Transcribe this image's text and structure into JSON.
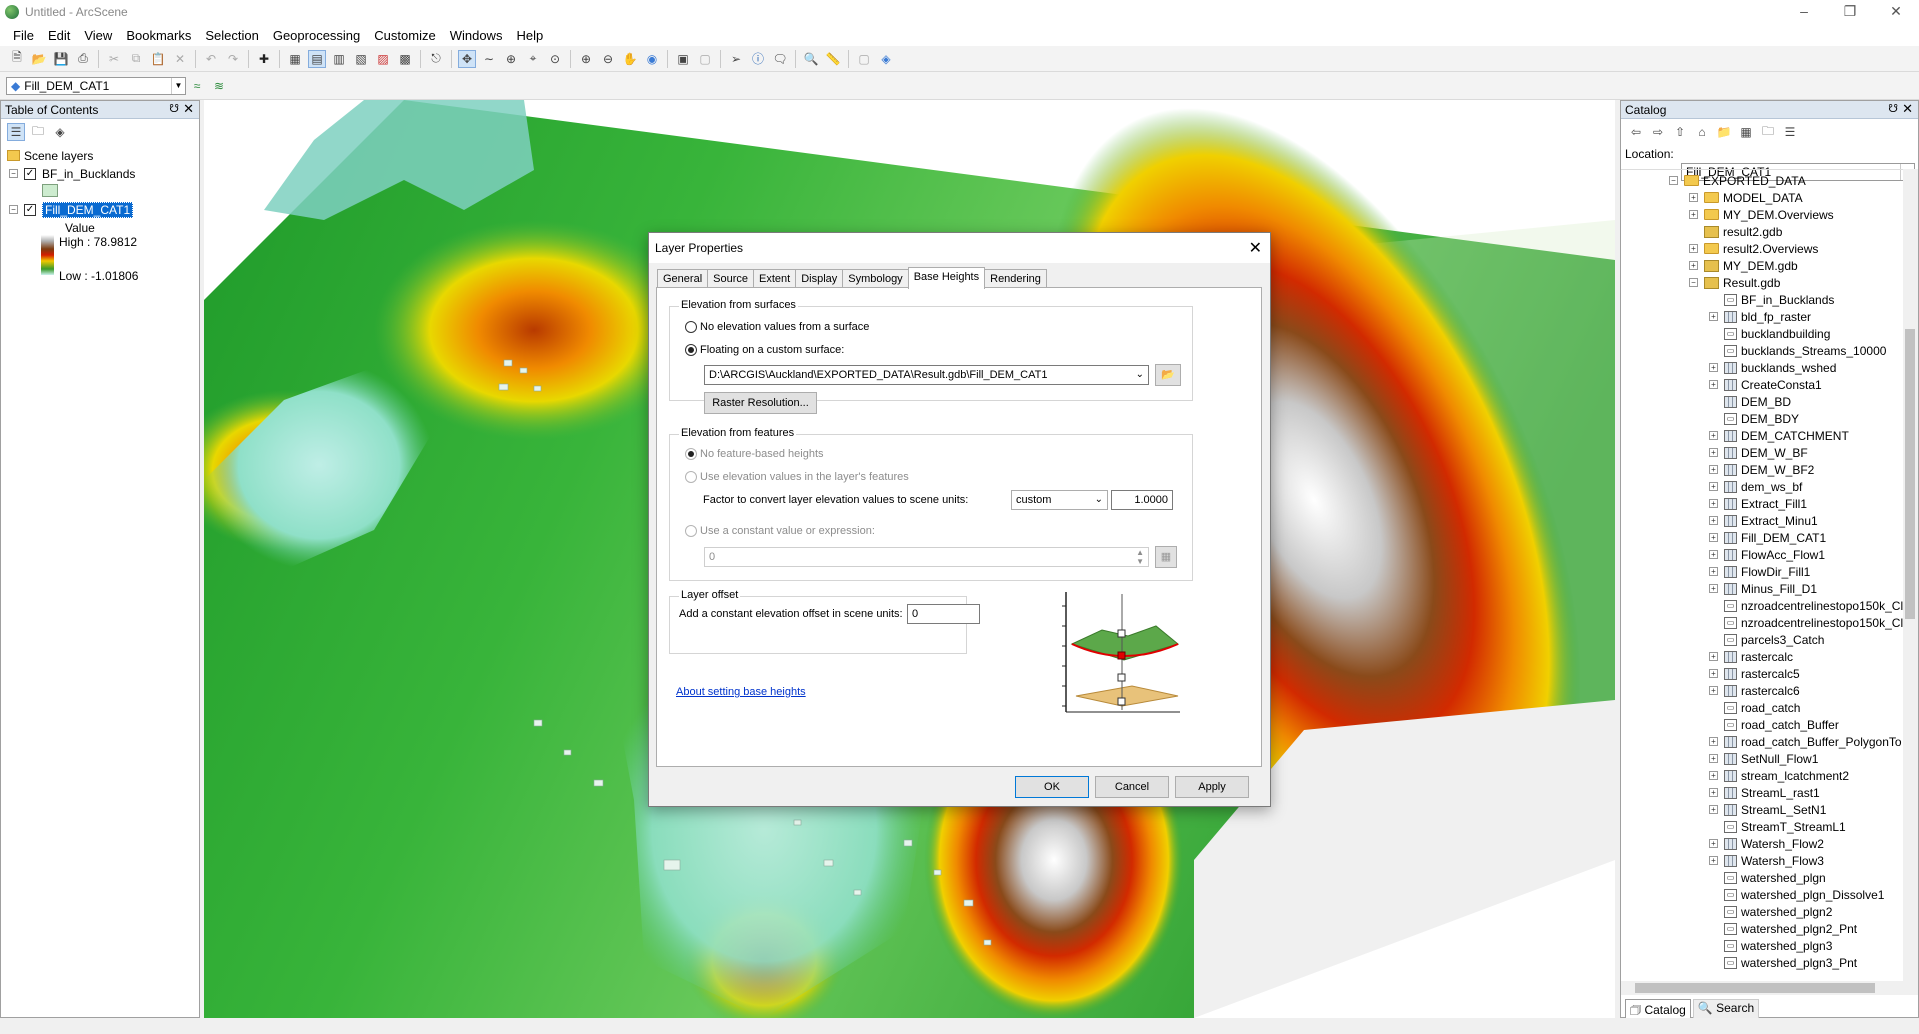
{
  "window": {
    "title": "Untitled - ArcScene"
  },
  "menu": [
    "File",
    "Edit",
    "View",
    "Bookmarks",
    "Selection",
    "Geoprocessing",
    "Customize",
    "Windows",
    "Help"
  ],
  "layer_combo": "Fill_DEM_CAT1",
  "toc": {
    "title": "Table of Contents",
    "root": "Scene layers",
    "layer1": "BF_in_Bucklands",
    "layer2": "Fill_DEM_CAT1",
    "value_label": "Value",
    "high": "High : 78.9812",
    "low": "Low : -1.01806"
  },
  "catalog": {
    "title": "Catalog",
    "location_label": "Location:",
    "location_value": "Fill_DEM_CAT1",
    "items": [
      {
        "label": "EXPORTED_DATA",
        "icon": "folder",
        "indent": 0,
        "exp": "-"
      },
      {
        "label": "MODEL_DATA",
        "icon": "folder",
        "indent": 1,
        "exp": "+"
      },
      {
        "label": "MY_DEM.Overviews",
        "icon": "folder",
        "indent": 1,
        "exp": "+"
      },
      {
        "label": "result2.gdb",
        "icon": "gdb",
        "indent": 1,
        "exp": ""
      },
      {
        "label": "result2.Overviews",
        "icon": "folder",
        "indent": 1,
        "exp": "+"
      },
      {
        "label": "MY_DEM.gdb",
        "icon": "gdb",
        "indent": 1,
        "exp": "+"
      },
      {
        "label": "Result.gdb",
        "icon": "gdb",
        "indent": 1,
        "exp": "-"
      },
      {
        "label": "BF_in_Bucklands",
        "icon": "feature",
        "indent": 2,
        "exp": ""
      },
      {
        "label": "bld_fp_raster",
        "icon": "raster",
        "indent": 2,
        "exp": "+"
      },
      {
        "label": "bucklandbuilding",
        "icon": "feature",
        "indent": 2,
        "exp": ""
      },
      {
        "label": "bucklands_Streams_10000",
        "icon": "feature",
        "indent": 2,
        "exp": ""
      },
      {
        "label": "bucklands_wshed",
        "icon": "raster",
        "indent": 2,
        "exp": "+"
      },
      {
        "label": "CreateConsta1",
        "icon": "raster",
        "indent": 2,
        "exp": "+"
      },
      {
        "label": "DEM_BD",
        "icon": "raster",
        "indent": 2,
        "exp": ""
      },
      {
        "label": "DEM_BDY",
        "icon": "feature",
        "indent": 2,
        "exp": ""
      },
      {
        "label": "DEM_CATCHMENT",
        "icon": "raster",
        "indent": 2,
        "exp": "+"
      },
      {
        "label": "DEM_W_BF",
        "icon": "raster",
        "indent": 2,
        "exp": "+"
      },
      {
        "label": "DEM_W_BF2",
        "icon": "raster",
        "indent": 2,
        "exp": "+"
      },
      {
        "label": "dem_ws_bf",
        "icon": "raster",
        "indent": 2,
        "exp": "+"
      },
      {
        "label": "Extract_Fill1",
        "icon": "raster",
        "indent": 2,
        "exp": "+"
      },
      {
        "label": "Extract_Minu1",
        "icon": "raster",
        "indent": 2,
        "exp": "+"
      },
      {
        "label": "Fill_DEM_CAT1",
        "icon": "raster",
        "indent": 2,
        "exp": "+"
      },
      {
        "label": "FlowAcc_Flow1",
        "icon": "raster",
        "indent": 2,
        "exp": "+"
      },
      {
        "label": "FlowDir_Fill1",
        "icon": "raster",
        "indent": 2,
        "exp": "+"
      },
      {
        "label": "Minus_Fill_D1",
        "icon": "raster",
        "indent": 2,
        "exp": "+"
      },
      {
        "label": "nzroadcentrelinestopo150k_Cl",
        "icon": "feature",
        "indent": 2,
        "exp": ""
      },
      {
        "label": "nzroadcentrelinestopo150k_Cl",
        "icon": "feature",
        "indent": 2,
        "exp": ""
      },
      {
        "label": "parcels3_Catch",
        "icon": "feature",
        "indent": 2,
        "exp": ""
      },
      {
        "label": "rastercalc",
        "icon": "raster",
        "indent": 2,
        "exp": "+"
      },
      {
        "label": "rastercalc5",
        "icon": "raster",
        "indent": 2,
        "exp": "+"
      },
      {
        "label": "rastercalc6",
        "icon": "raster",
        "indent": 2,
        "exp": "+"
      },
      {
        "label": "road_catch",
        "icon": "feature",
        "indent": 2,
        "exp": ""
      },
      {
        "label": "road_catch_Buffer",
        "icon": "feature",
        "indent": 2,
        "exp": ""
      },
      {
        "label": "road_catch_Buffer_PolygonTo",
        "icon": "raster",
        "indent": 2,
        "exp": "+"
      },
      {
        "label": "SetNull_Flow1",
        "icon": "raster",
        "indent": 2,
        "exp": "+"
      },
      {
        "label": "stream_lcatchment2",
        "icon": "raster",
        "indent": 2,
        "exp": "+"
      },
      {
        "label": "StreamL_rast1",
        "icon": "raster",
        "indent": 2,
        "exp": "+"
      },
      {
        "label": "StreamL_SetN1",
        "icon": "raster",
        "indent": 2,
        "exp": "+"
      },
      {
        "label": "StreamT_StreamL1",
        "icon": "feature",
        "indent": 2,
        "exp": ""
      },
      {
        "label": "Watersh_Flow2",
        "icon": "raster",
        "indent": 2,
        "exp": "+"
      },
      {
        "label": "Watersh_Flow3",
        "icon": "raster",
        "indent": 2,
        "exp": "+"
      },
      {
        "label": "watershed_plgn",
        "icon": "feature",
        "indent": 2,
        "exp": ""
      },
      {
        "label": "watershed_plgn_Dissolve1",
        "icon": "feature",
        "indent": 2,
        "exp": ""
      },
      {
        "label": "watershed_plgn2",
        "icon": "feature",
        "indent": 2,
        "exp": ""
      },
      {
        "label": "watershed_plgn2_Pnt",
        "icon": "feature",
        "indent": 2,
        "exp": ""
      },
      {
        "label": "watershed_plgn3",
        "icon": "feature",
        "indent": 2,
        "exp": ""
      },
      {
        "label": "watershed_plgn3_Pnt",
        "icon": "feature",
        "indent": 2,
        "exp": ""
      }
    ],
    "tab_catalog": "Catalog",
    "tab_search": "Search"
  },
  "dialog": {
    "title": "Layer Properties",
    "tabs": [
      "General",
      "Source",
      "Extent",
      "Display",
      "Symbology",
      "Base Heights",
      "Rendering"
    ],
    "surfaces_group": "Elevation from surfaces",
    "no_surface": "No elevation values from a surface",
    "floating": "Floating on a custom surface:",
    "surface_path": "D:\\ARCGIS\\Auckland\\EXPORTED_DATA\\Result.gdb\\Fill_DEM_CAT1",
    "raster_res_btn": "Raster Resolution...",
    "features_group": "Elevation from features",
    "no_feature": "No feature-based heights",
    "use_elev": "Use elevation values in the layer's features",
    "factor_label": "Factor to convert layer elevation values to scene units:",
    "factor_unit": "custom",
    "factor_value": "1.0000",
    "use_constant": "Use a constant value or expression:",
    "constant_value": "0",
    "offset_group": "Layer offset",
    "offset_label": "Add a constant elevation offset in scene units:",
    "offset_value": "0",
    "help_link": "About setting base heights",
    "ok": "OK",
    "cancel": "Cancel",
    "apply": "Apply"
  }
}
